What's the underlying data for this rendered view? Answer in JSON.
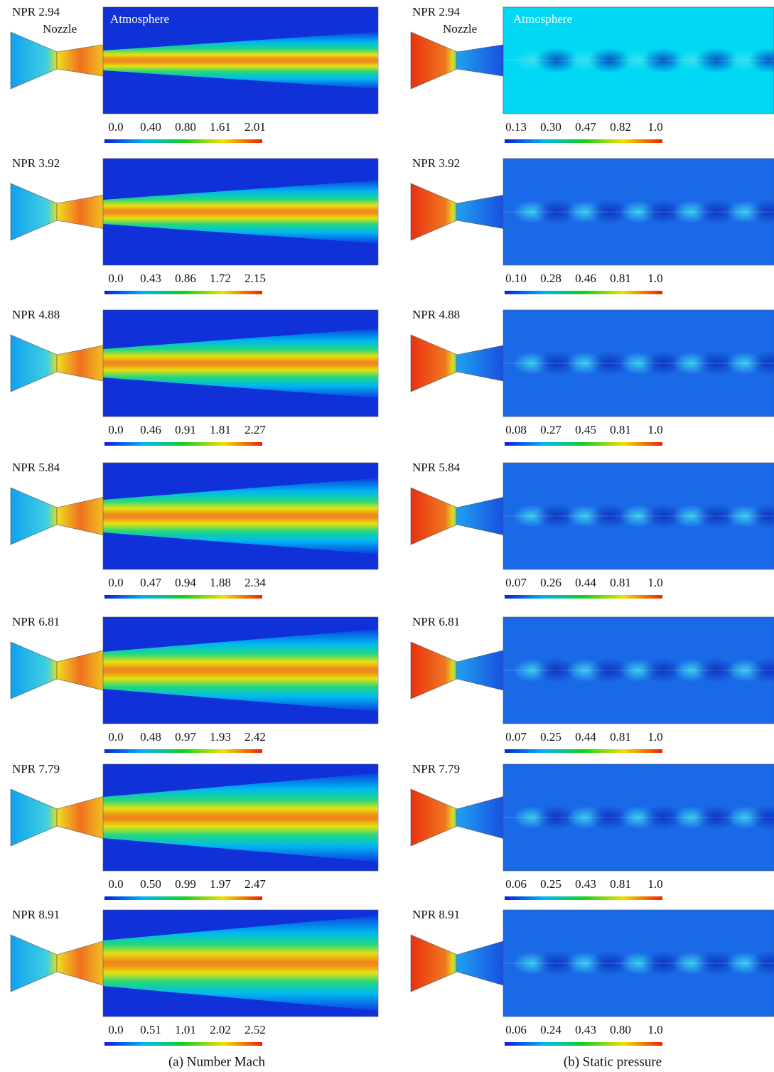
{
  "columns": [
    {
      "caption": "(a) Number Mach",
      "kind": "mach",
      "annotations": {
        "nozzle": "Nozzle",
        "atmosphere": "Atmosphere"
      },
      "panels": [
        {
          "label": "NPR 2.94",
          "ticks": [
            "0.0",
            "0.40",
            "0.80",
            "1.61",
            "2.01"
          ]
        },
        {
          "label": "NPR 3.92",
          "ticks": [
            "0.0",
            "0.43",
            "0.86",
            "1.72",
            "2.15"
          ]
        },
        {
          "label": "NPR 4.88",
          "ticks": [
            "0.0",
            "0.46",
            "0.91",
            "1.81",
            "2.27"
          ]
        },
        {
          "label": "NPR 5.84",
          "ticks": [
            "0.0",
            "0.47",
            "0.94",
            "1.88",
            "2.34"
          ]
        },
        {
          "label": "NPR 6.81",
          "ticks": [
            "0.0",
            "0.48",
            "0.97",
            "1.93",
            "2.42"
          ]
        },
        {
          "label": "NPR 7.79",
          "ticks": [
            "0.0",
            "0.50",
            "0.99",
            "1.97",
            "2.47"
          ]
        },
        {
          "label": "NPR 8.91",
          "ticks": [
            "0.0",
            "0.51",
            "1.01",
            "2.02",
            "2.52"
          ]
        }
      ]
    },
    {
      "caption": "(b) Static pressure",
      "kind": "pressure",
      "annotations": {
        "nozzle": "Nozzle",
        "atmosphere": "Atmosphere"
      },
      "panels": [
        {
          "label": "NPR 2.94",
          "ticks": [
            "0.13",
            "0.30",
            "0.47",
            "0.82",
            "1.0"
          ]
        },
        {
          "label": "NPR 3.92",
          "ticks": [
            "0.10",
            "0.28",
            "0.46",
            "0.81",
            "1.0"
          ]
        },
        {
          "label": "NPR 4.88",
          "ticks": [
            "0.08",
            "0.27",
            "0.45",
            "0.81",
            "1.0"
          ]
        },
        {
          "label": "NPR 5.84",
          "ticks": [
            "0.07",
            "0.26",
            "0.44",
            "0.81",
            "1.0"
          ]
        },
        {
          "label": "NPR 6.81",
          "ticks": [
            "0.07",
            "0.25",
            "0.44",
            "0.81",
            "1.0"
          ]
        },
        {
          "label": "NPR 7.79",
          "ticks": [
            "0.06",
            "0.25",
            "0.43",
            "0.81",
            "1.0"
          ]
        },
        {
          "label": "NPR 8.91",
          "ticks": [
            "0.06",
            "0.24",
            "0.43",
            "0.80",
            "1.0"
          ]
        }
      ]
    }
  ]
}
